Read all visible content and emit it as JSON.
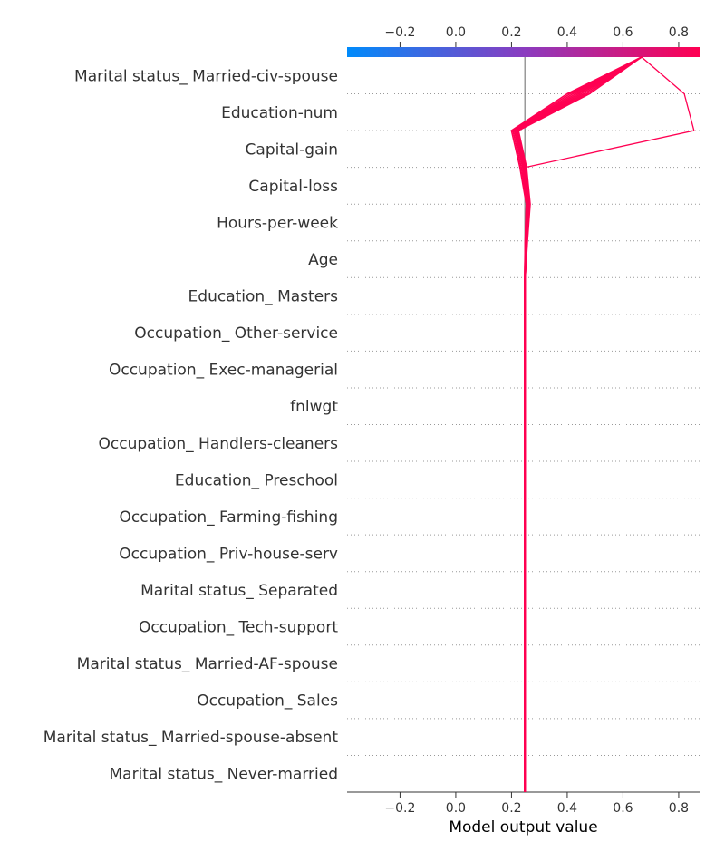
{
  "chart_data": {
    "type": "line",
    "title": "",
    "xlabel": "Model output value",
    "ylabel": "",
    "xlim": [
      -0.39,
      0.875
    ],
    "base_value": 0.248,
    "x_ticks": [
      -0.2,
      0.0,
      0.2,
      0.4,
      0.6,
      0.8
    ],
    "x_tick_labels": [
      "−0.2",
      "0.0",
      "0.2",
      "0.4",
      "0.6",
      "0.8"
    ],
    "colorbar": {
      "low_color": "#008bfb",
      "high_color": "#ff0052"
    },
    "grid": "dotted horizontal lines between features",
    "features": [
      "Marital status_ Married-civ-spouse",
      "Education-num",
      "Capital-gain",
      "Capital-loss",
      "Hours-per-week",
      "Age",
      "Education_ Masters",
      "Occupation_ Other-service",
      "Occupation_ Exec-managerial",
      "fnlwgt",
      "Occupation_ Handlers-cleaners",
      "Education_ Preschool",
      "Occupation_ Farming-fishing",
      "Occupation_ Priv-house-serv",
      "Marital status_ Separated",
      "Occupation_ Tech-support",
      "Marital status_ Married-AF-spouse",
      "Occupation_ Sales",
      "Marital status_ Married-spouse-absent",
      "Marital status_ Never-married"
    ],
    "series": [
      {
        "values": [
          0.667,
          0.82,
          0.855,
          0.25,
          0.253,
          0.249,
          0.247,
          0.247,
          0.247,
          0.247,
          0.247,
          0.247,
          0.247,
          0.247,
          0.247,
          0.247,
          0.247,
          0.247,
          0.247,
          0.247,
          0.247
        ]
      },
      {
        "values": [
          0.667,
          0.4,
          0.2,
          0.23,
          0.253,
          0.249,
          0.247,
          0.247,
          0.247,
          0.247,
          0.247,
          0.247,
          0.247,
          0.247,
          0.247,
          0.247,
          0.247,
          0.247,
          0.247,
          0.247,
          0.247
        ]
      },
      {
        "values": [
          0.667,
          0.41,
          0.205,
          0.235,
          0.256,
          0.25,
          0.247,
          0.247,
          0.247,
          0.247,
          0.247,
          0.247,
          0.247,
          0.247,
          0.247,
          0.247,
          0.247,
          0.247,
          0.247,
          0.247,
          0.247
        ]
      },
      {
        "values": [
          0.667,
          0.42,
          0.21,
          0.24,
          0.258,
          0.251,
          0.248,
          0.248,
          0.248,
          0.248,
          0.248,
          0.248,
          0.248,
          0.248,
          0.248,
          0.248,
          0.248,
          0.248,
          0.248,
          0.248,
          0.248
        ]
      },
      {
        "values": [
          0.667,
          0.43,
          0.212,
          0.243,
          0.26,
          0.252,
          0.248,
          0.248,
          0.248,
          0.248,
          0.248,
          0.248,
          0.248,
          0.248,
          0.248,
          0.248,
          0.248,
          0.248,
          0.248,
          0.248,
          0.248
        ]
      },
      {
        "values": [
          0.667,
          0.44,
          0.215,
          0.246,
          0.262,
          0.253,
          0.248,
          0.248,
          0.248,
          0.248,
          0.248,
          0.248,
          0.248,
          0.248,
          0.248,
          0.248,
          0.248,
          0.248,
          0.248,
          0.248,
          0.248
        ]
      },
      {
        "values": [
          0.667,
          0.45,
          0.218,
          0.248,
          0.264,
          0.254,
          0.248,
          0.248,
          0.248,
          0.248,
          0.248,
          0.248,
          0.248,
          0.248,
          0.248,
          0.248,
          0.248,
          0.248,
          0.248,
          0.248,
          0.248
        ]
      },
      {
        "values": [
          0.667,
          0.46,
          0.22,
          0.25,
          0.265,
          0.255,
          0.249,
          0.249,
          0.249,
          0.249,
          0.249,
          0.249,
          0.249,
          0.249,
          0.249,
          0.249,
          0.249,
          0.249,
          0.249,
          0.249,
          0.249
        ]
      },
      {
        "values": [
          0.667,
          0.47,
          0.222,
          0.252,
          0.266,
          0.256,
          0.249,
          0.249,
          0.249,
          0.249,
          0.249,
          0.249,
          0.249,
          0.249,
          0.249,
          0.249,
          0.249,
          0.249,
          0.249,
          0.249,
          0.249
        ]
      },
      {
        "values": [
          0.667,
          0.48,
          0.225,
          0.254,
          0.267,
          0.257,
          0.249,
          0.249,
          0.249,
          0.249,
          0.249,
          0.249,
          0.249,
          0.249,
          0.249,
          0.249,
          0.249,
          0.249,
          0.249,
          0.249,
          0.249
        ]
      }
    ]
  }
}
